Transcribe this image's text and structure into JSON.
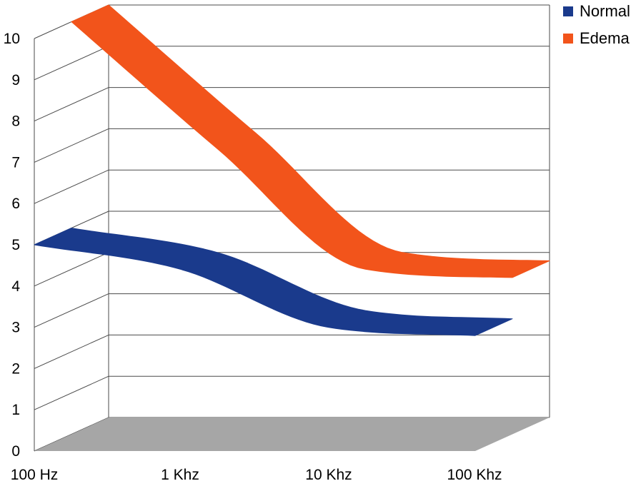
{
  "chart_data": {
    "type": "area",
    "style": "3d-ribbon",
    "title": "",
    "xlabel": "",
    "ylabel": "",
    "categories": [
      "100 Hz",
      "1 Khz",
      "10 Khz",
      "100 Khz"
    ],
    "ylim": [
      0,
      10
    ],
    "y_ticks": [
      "0",
      "1",
      "2",
      "3",
      "4",
      "5",
      "6",
      "7",
      "8",
      "9",
      "10"
    ],
    "grid": true,
    "legend_position": "top-right",
    "series": [
      {
        "name": "Normal",
        "color": "#1a3a8c",
        "depth": "front",
        "values": [
          5.0,
          4.4,
          3.0,
          2.8
        ]
      },
      {
        "name": "Edema",
        "color": "#f2541b",
        "depth": "back",
        "values": [
          10.0,
          6.9,
          4.0,
          3.8
        ]
      }
    ],
    "floor_color": "#a6a6a6"
  }
}
